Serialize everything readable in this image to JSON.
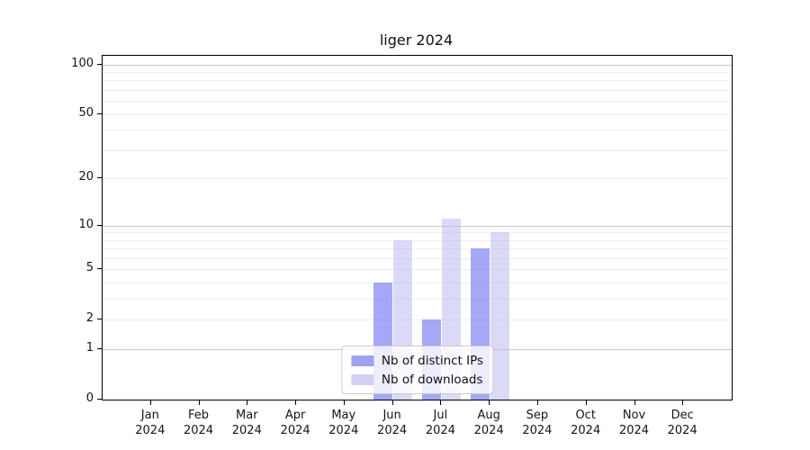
{
  "chart_data": {
    "type": "bar",
    "title": "liger 2024",
    "categories": [
      "Jan",
      "Feb",
      "Mar",
      "Apr",
      "May",
      "Jun",
      "Jul",
      "Aug",
      "Sep",
      "Oct",
      "Nov",
      "Dec"
    ],
    "category_year": "2024",
    "series": [
      {
        "name": "Nb of distinct IPs",
        "color": "#a0a0ee",
        "fill": "rgba(120,120,244,0.65)",
        "values": [
          0,
          0,
          0,
          0,
          0,
          4,
          2,
          7,
          0,
          0,
          0,
          0
        ]
      },
      {
        "name": "Nb of downloads",
        "color": "#d0d0f4",
        "fill": "rgba(185,185,242,0.52)",
        "values": [
          0,
          0,
          0,
          0,
          0,
          8,
          11,
          9,
          0,
          0,
          0,
          0
        ]
      }
    ],
    "xlabel": "",
    "ylabel": "",
    "yaxis": {
      "scale": "log1p",
      "ylim": [
        0,
        100
      ],
      "tick_values": [
        100,
        50,
        20,
        10,
        5,
        2,
        1,
        0
      ],
      "tick_labels": [
        "100",
        "50",
        "20",
        "10",
        "5",
        "2",
        "1",
        "0"
      ],
      "major_gridlines": [
        1,
        10,
        100
      ],
      "minor_gridlines": [
        2,
        3,
        4,
        5,
        6,
        7,
        8,
        9,
        20,
        30,
        40,
        50,
        60,
        70,
        80,
        90
      ],
      "grid": true
    },
    "legend": {
      "position": "lower center",
      "entries": [
        "Nb of distinct IPs",
        "Nb of downloads"
      ]
    },
    "colors": {
      "major_gridline": "#c8c8c8",
      "minor_gridline": "#ededed",
      "spine": "#000000",
      "background": "#ffffff"
    }
  }
}
